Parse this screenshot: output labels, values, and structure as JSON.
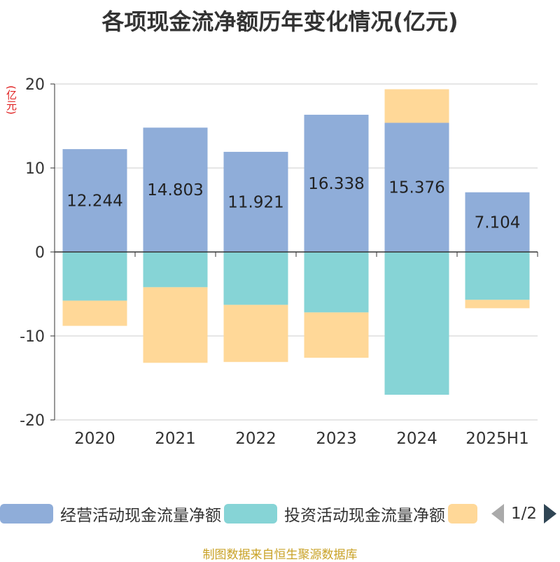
{
  "title": "各项现金流净额历年变化情况(亿元)",
  "unit_label": "(亿元)",
  "source": "制图数据来自恒生聚源数据库",
  "legend": {
    "items": [
      {
        "label": "经营活动现金流量净额",
        "color": "#8fadd9"
      },
      {
        "label": "投资活动现金流量净额",
        "color": "#86d4d6"
      },
      {
        "label": "",
        "color": "#ffd898"
      }
    ],
    "page": "1/2"
  },
  "chart_data": {
    "type": "bar",
    "stacked": true,
    "categories": [
      "2020",
      "2021",
      "2022",
      "2023",
      "2024",
      "2025H1"
    ],
    "ylim": [
      -20,
      20
    ],
    "yticks": [
      20,
      10,
      0,
      -10,
      -20
    ],
    "grid": true,
    "legend_position": "bottom",
    "series": [
      {
        "name": "经营活动现金流量净额",
        "color": "#8fadd9",
        "values": [
          12.244,
          14.803,
          11.921,
          16.338,
          15.376,
          7.104
        ],
        "labels": true
      },
      {
        "name": "投资活动现金流量净额",
        "color": "#86d4d6",
        "values": [
          -5.8,
          -4.2,
          -6.3,
          -7.2,
          -17.0,
          -5.7
        ],
        "labels": false
      },
      {
        "name": "",
        "color": "#ffd898",
        "values": [
          -3.0,
          -9.0,
          -6.8,
          -5.4,
          4.0,
          -1.0
        ],
        "labels": false
      }
    ],
    "data_labels": [
      "12.244",
      "14.803",
      "11.921",
      "16.338",
      "15.376",
      "7.104"
    ]
  }
}
